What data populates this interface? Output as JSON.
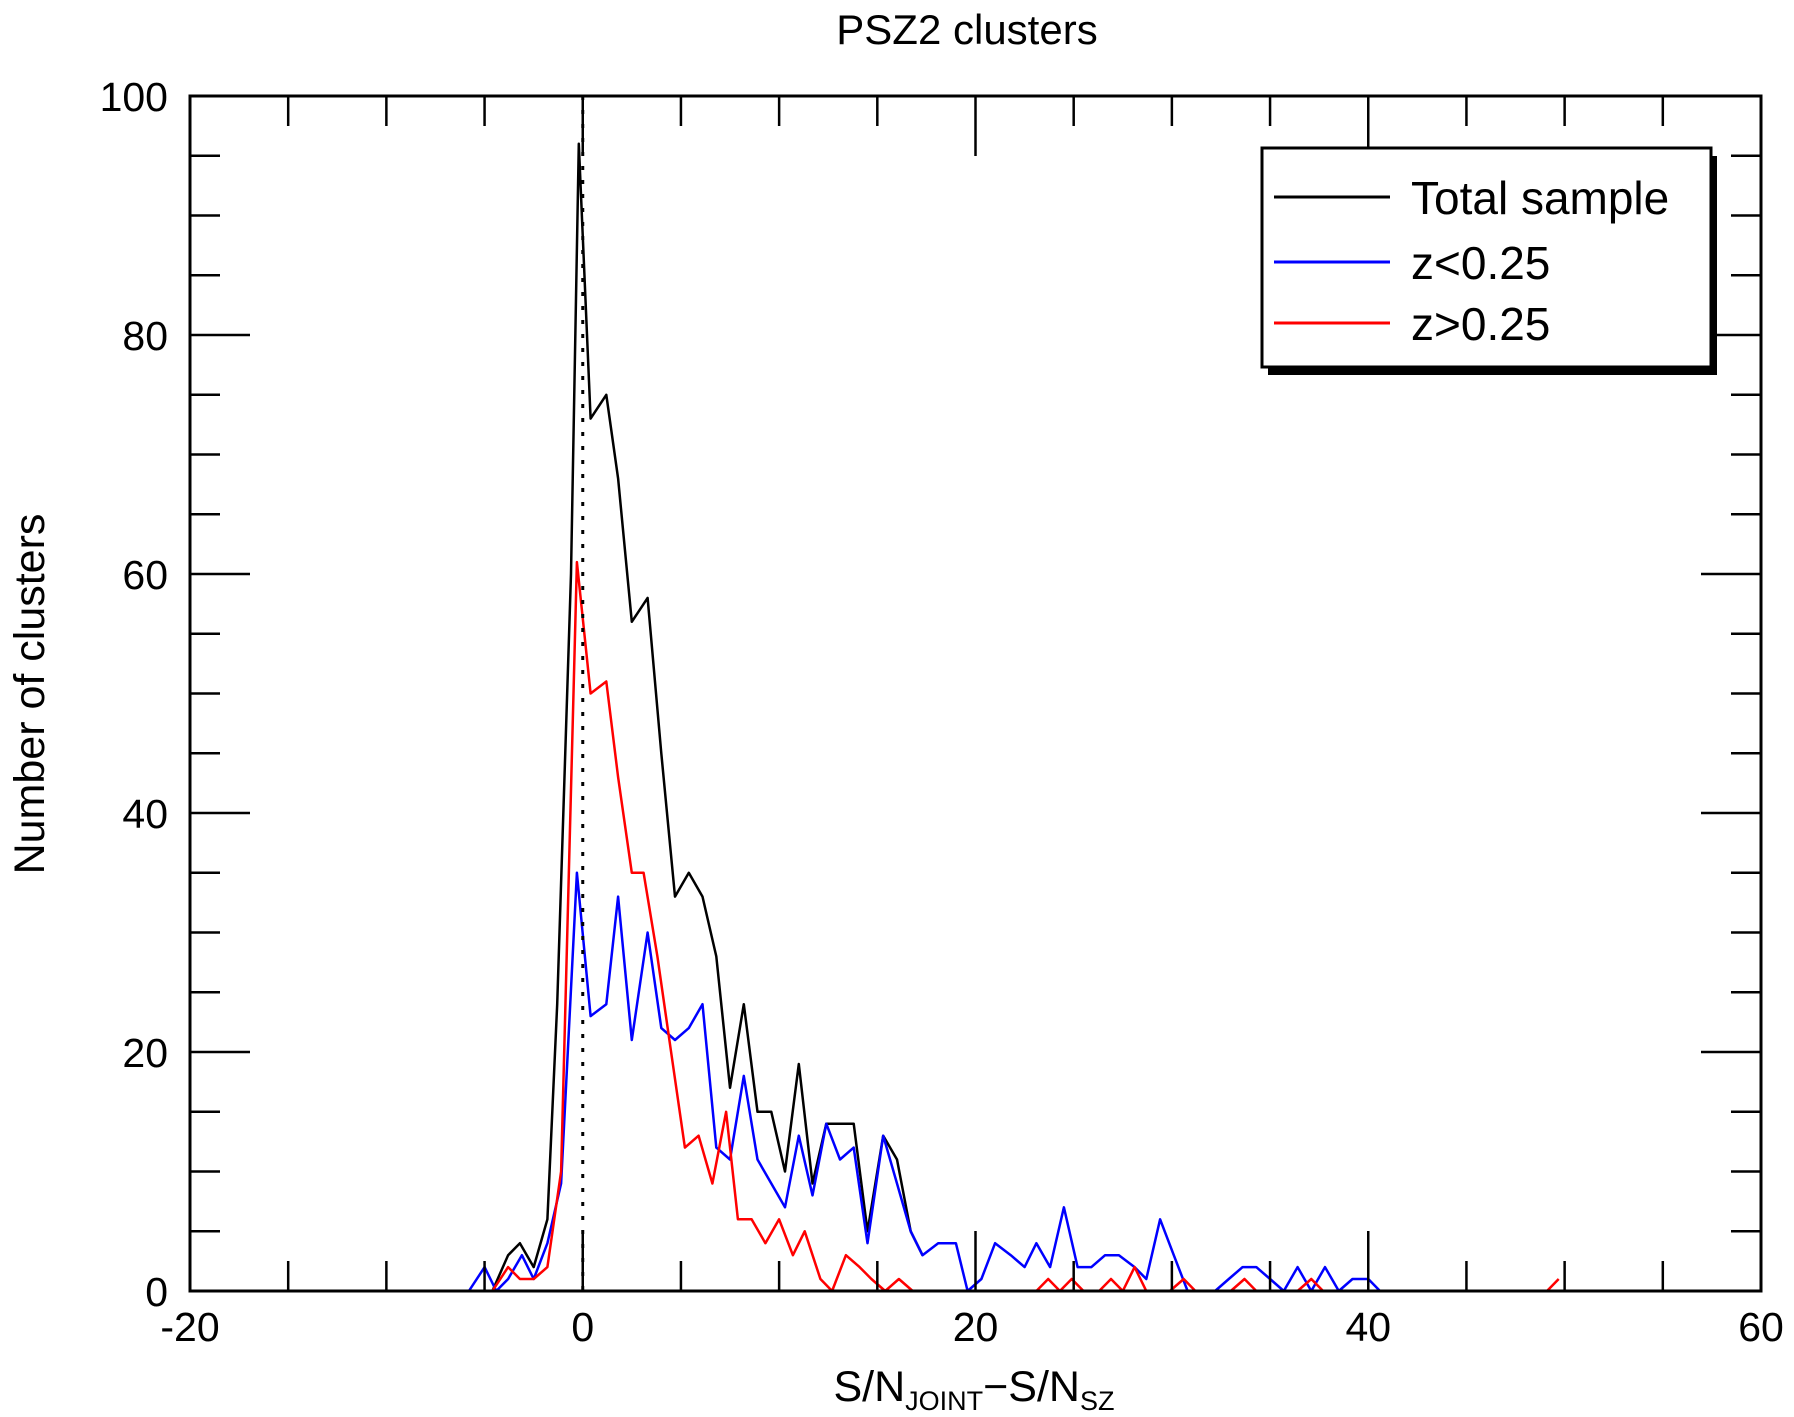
{
  "chart_data": {
    "type": "line",
    "title": "PSZ2 clusters",
    "xlabel": {
      "main": "S/N",
      "sub1": "JOINT",
      "minus": "−",
      "main2": "S/N",
      "sub2": "SZ"
    },
    "ylabel": "Number of clusters",
    "xlim": [
      -20,
      60
    ],
    "ylim": [
      0,
      100
    ],
    "x_ticks": [
      -20,
      0,
      20,
      40,
      60
    ],
    "y_ticks": [
      0,
      20,
      40,
      60,
      80,
      100
    ],
    "x_tick_labels": [
      "-20",
      "0",
      "20",
      "40",
      "60"
    ],
    "y_tick_labels": [
      "0",
      "20",
      "40",
      "60",
      "80",
      "100"
    ],
    "reference_line": {
      "x": 0,
      "style": "dotted",
      "color": "#000000"
    },
    "legend": {
      "placement": "top-right"
    },
    "series": [
      {
        "name": "Total sample",
        "color": "#000000",
        "points": [
          [
            -5.2,
            0
          ],
          [
            -4.6,
            0
          ],
          [
            -3.8,
            3
          ],
          [
            -3.2,
            4
          ],
          [
            -2.5,
            2
          ],
          [
            -1.8,
            6
          ],
          [
            -1.3,
            24
          ],
          [
            -0.6,
            60
          ],
          [
            -0.2,
            96
          ],
          [
            0.4,
            73
          ],
          [
            1.2,
            75
          ],
          [
            1.8,
            68
          ],
          [
            2.5,
            56
          ],
          [
            3.3,
            58
          ],
          [
            4,
            45
          ],
          [
            4.7,
            33
          ],
          [
            5.4,
            35
          ],
          [
            6.1,
            33
          ],
          [
            6.8,
            28
          ],
          [
            7.5,
            17
          ],
          [
            8.2,
            24
          ],
          [
            8.9,
            15
          ],
          [
            9.6,
            15
          ],
          [
            10.3,
            10
          ],
          [
            11,
            19
          ],
          [
            11.7,
            9
          ],
          [
            12.4,
            14
          ],
          [
            13.1,
            14
          ],
          [
            13.8,
            14
          ],
          [
            14.5,
            5
          ],
          [
            15.3,
            13
          ],
          [
            16,
            11
          ],
          [
            16.7,
            5
          ],
          [
            17.3,
            3
          ]
        ]
      },
      {
        "name": "z<0.25",
        "color": "#0000ff",
        "points": [
          [
            -5.8,
            0
          ],
          [
            -5,
            2
          ],
          [
            -4.4,
            0
          ],
          [
            -3.8,
            1
          ],
          [
            -3.1,
            3
          ],
          [
            -2.5,
            1
          ],
          [
            -1.8,
            4
          ],
          [
            -1.1,
            9
          ],
          [
            -0.3,
            35
          ],
          [
            0.4,
            23
          ],
          [
            1.2,
            24
          ],
          [
            1.8,
            33
          ],
          [
            2.5,
            21
          ],
          [
            3.3,
            30
          ],
          [
            4,
            22
          ],
          [
            4.7,
            21
          ],
          [
            5.4,
            22
          ],
          [
            6.1,
            24
          ],
          [
            6.8,
            12
          ],
          [
            7.5,
            11
          ],
          [
            8.2,
            18
          ],
          [
            8.9,
            11
          ],
          [
            9.6,
            9
          ],
          [
            10.3,
            7
          ],
          [
            11,
            13
          ],
          [
            11.7,
            8
          ],
          [
            12.4,
            14
          ],
          [
            13.1,
            11
          ],
          [
            13.8,
            12
          ],
          [
            14.5,
            4
          ],
          [
            15.3,
            13
          ],
          [
            16,
            9
          ],
          [
            16.7,
            5
          ],
          [
            17.3,
            3
          ],
          [
            18.1,
            4
          ],
          [
            19,
            4
          ],
          [
            19.6,
            0
          ],
          [
            20.3,
            1
          ],
          [
            21,
            4
          ],
          [
            21.8,
            3
          ],
          [
            22.5,
            2
          ],
          [
            23.1,
            4
          ],
          [
            23.8,
            2
          ],
          [
            24.5,
            7
          ],
          [
            25.2,
            2
          ],
          [
            25.9,
            2
          ],
          [
            26.6,
            3
          ],
          [
            27.3,
            3
          ],
          [
            28.1,
            2
          ],
          [
            28.7,
            1
          ],
          [
            29.4,
            6
          ],
          [
            30.1,
            3
          ],
          [
            30.8,
            0
          ],
          [
            31.6,
            0
          ],
          [
            32.2,
            0
          ],
          [
            32.9,
            1
          ],
          [
            33.6,
            2
          ],
          [
            34.3,
            2
          ],
          [
            35,
            1
          ],
          [
            35.7,
            0
          ],
          [
            36.4,
            2
          ],
          [
            37.1,
            0
          ],
          [
            37.8,
            2
          ],
          [
            38.5,
            0
          ],
          [
            39.2,
            1
          ],
          [
            40,
            1
          ],
          [
            40.6,
            0
          ],
          [
            41.2,
            0
          ]
        ]
      },
      {
        "name": "z>0.25",
        "color": "#ff0000",
        "points": [
          [
            -4.6,
            0
          ],
          [
            -3.8,
            2
          ],
          [
            -3.2,
            1
          ],
          [
            -2.5,
            1
          ],
          [
            -1.8,
            2
          ],
          [
            -1.1,
            10
          ],
          [
            -0.3,
            61
          ],
          [
            0.4,
            50
          ],
          [
            1.2,
            51
          ],
          [
            1.8,
            43
          ],
          [
            2.5,
            35
          ],
          [
            3.1,
            35
          ],
          [
            3.8,
            28
          ],
          [
            4.5,
            20
          ],
          [
            5.2,
            12
          ],
          [
            5.9,
            13
          ],
          [
            6.6,
            9
          ],
          [
            7.3,
            15
          ],
          [
            7.9,
            6
          ],
          [
            8.6,
            6
          ],
          [
            9.3,
            4
          ],
          [
            10,
            6
          ],
          [
            10.7,
            3
          ],
          [
            11.3,
            5
          ],
          [
            12.1,
            1
          ],
          [
            12.7,
            0
          ],
          [
            13.4,
            3
          ],
          [
            14.1,
            2
          ],
          [
            14.7,
            1
          ],
          [
            15.4,
            0
          ],
          [
            16.1,
            1
          ],
          [
            16.8,
            0
          ],
          [
            23.1,
            0
          ],
          [
            23.7,
            1
          ],
          [
            24.3,
            0
          ],
          [
            24.9,
            1
          ],
          [
            25.5,
            0
          ],
          [
            26.3,
            0
          ],
          [
            26.9,
            1
          ],
          [
            27.5,
            0
          ],
          [
            28.1,
            2
          ],
          [
            28.7,
            0
          ],
          [
            29.9,
            0
          ],
          [
            30.6,
            1
          ],
          [
            31.2,
            0
          ],
          [
            33,
            0
          ],
          [
            33.7,
            1
          ],
          [
            34.3,
            0
          ],
          [
            36.4,
            0
          ],
          [
            37.1,
            1
          ],
          [
            37.7,
            0
          ],
          [
            49.1,
            0
          ],
          [
            49.7,
            1
          ]
        ]
      }
    ]
  }
}
